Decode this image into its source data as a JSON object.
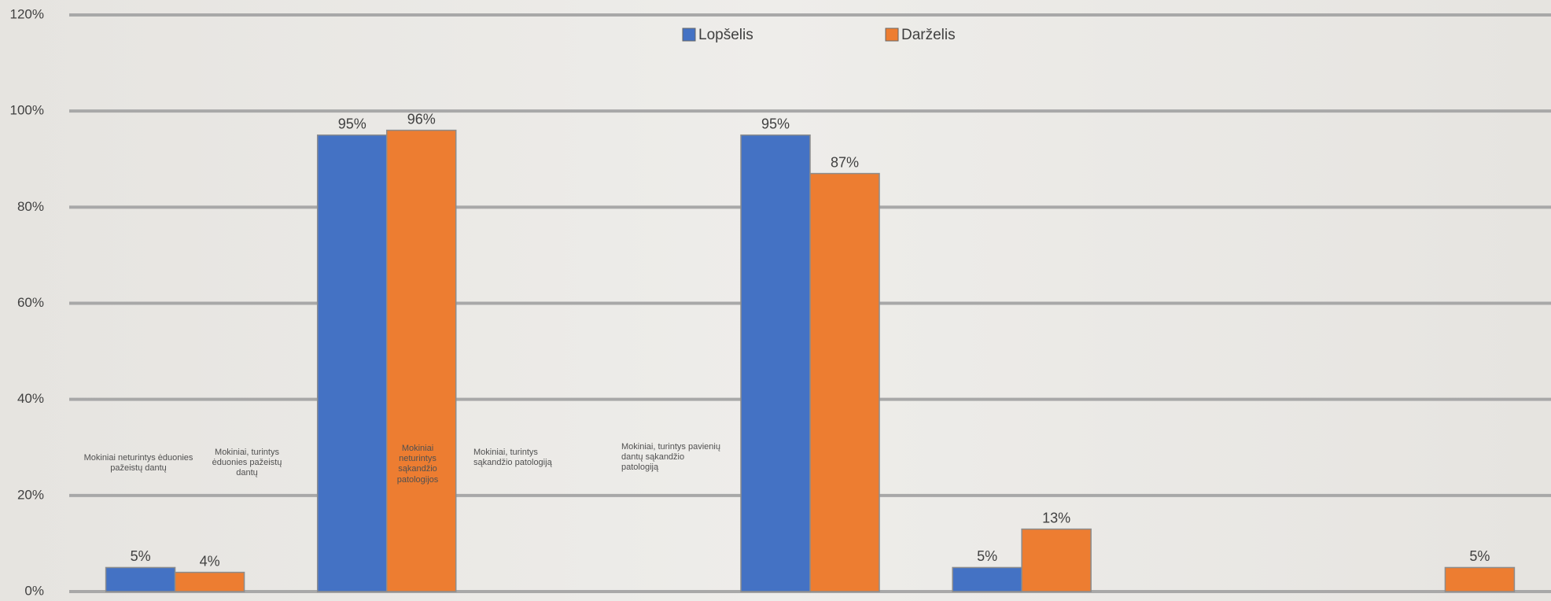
{
  "chart_data": {
    "type": "bar",
    "categories": [
      null,
      null,
      null,
      null,
      null,
      null,
      null
    ],
    "series": [
      {
        "name": "Lopšelis",
        "color": "#4472c4",
        "values": [
          5,
          95,
          null,
          95,
          5,
          null,
          null
        ],
        "value_labels": [
          "5%",
          "95%",
          null,
          "95%",
          "5%",
          null,
          null
        ]
      },
      {
        "name": "Darželis",
        "color": "#ed7d31",
        "values": [
          4,
          96,
          null,
          87,
          13,
          null,
          5
        ],
        "value_labels": [
          "4%",
          "96%",
          null,
          "87%",
          "13%",
          null,
          "5%"
        ]
      }
    ],
    "ylim": [
      0,
      120
    ],
    "yticks": [
      {
        "value": 0,
        "label": "0%"
      },
      {
        "value": 20,
        "label": "20%"
      },
      {
        "value": 40,
        "label": "40%"
      },
      {
        "value": 60,
        "label": "60%"
      },
      {
        "value": 80,
        "label": "80%"
      },
      {
        "value": 100,
        "label": "100%"
      },
      {
        "value": 120,
        "label": "120%"
      }
    ],
    "grid": true,
    "legend": "top",
    "annotations": [
      "Mokiniai neturintys ėduonies pažeistų dantų",
      "Mokiniai, turintys ėduonies pažeistų dantų",
      "Mokiniai neturintys sąkandžio patologijos",
      "Mokiniai, turintys sąkandžio patologiją",
      "Mokiniai, turintys pavienių dantų sąkandžio patologiją"
    ]
  }
}
